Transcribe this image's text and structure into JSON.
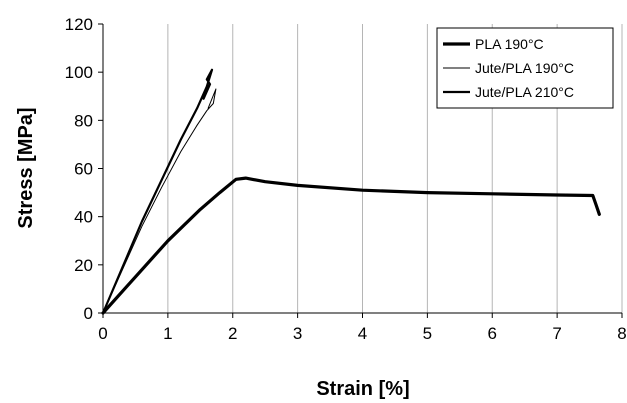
{
  "chart_data": {
    "type": "line",
    "title": "",
    "xlabel": "Strain [%]",
    "ylabel": "Stress [MPa]",
    "xlim": [
      0,
      8
    ],
    "ylim": [
      0,
      120
    ],
    "x_ticks": [
      "0",
      "1",
      "2",
      "3",
      "4",
      "5",
      "6",
      "7",
      "8"
    ],
    "y_ticks": [
      "0",
      "20",
      "40",
      "60",
      "80",
      "100",
      "120"
    ],
    "grid": "vertical gridlines at major x ticks",
    "legend_position": "top-right",
    "series": [
      {
        "name": "PLA 190°C",
        "color": "#000000",
        "style": "thick",
        "points": [
          [
            0,
            0
          ],
          [
            0.5,
            15
          ],
          [
            1,
            30
          ],
          [
            1.5,
            43
          ],
          [
            1.8,
            50
          ],
          [
            2.05,
            55.5
          ],
          [
            2.2,
            56
          ],
          [
            2.5,
            54.5
          ],
          [
            3,
            53
          ],
          [
            4,
            51
          ],
          [
            5,
            50
          ],
          [
            6,
            49.5
          ],
          [
            7,
            49
          ],
          [
            7.55,
            48.8
          ],
          [
            7.6,
            45
          ],
          [
            7.65,
            41
          ]
        ]
      },
      {
        "name": "Jute/PLA 190°C",
        "color": "#000000",
        "style": "thin",
        "points": [
          [
            0,
            0
          ],
          [
            0.3,
            18
          ],
          [
            0.6,
            36
          ],
          [
            0.9,
            52
          ],
          [
            1.2,
            67
          ],
          [
            1.45,
            78
          ],
          [
            1.6,
            84
          ],
          [
            1.7,
            87
          ],
          [
            1.74,
            93
          ],
          [
            1.68,
            89
          ],
          [
            1.62,
            85
          ]
        ]
      },
      {
        "name": "Jute/PLA 210°C",
        "color": "#000000",
        "style": "medium",
        "points": [
          [
            0,
            0
          ],
          [
            0.3,
            19
          ],
          [
            0.6,
            38
          ],
          [
            0.9,
            55
          ],
          [
            1.2,
            72
          ],
          [
            1.45,
            85
          ],
          [
            1.6,
            94
          ],
          [
            1.68,
            101
          ],
          [
            1.6,
            97
          ],
          [
            1.65,
            95
          ],
          [
            1.55,
            89
          ]
        ]
      }
    ]
  }
}
